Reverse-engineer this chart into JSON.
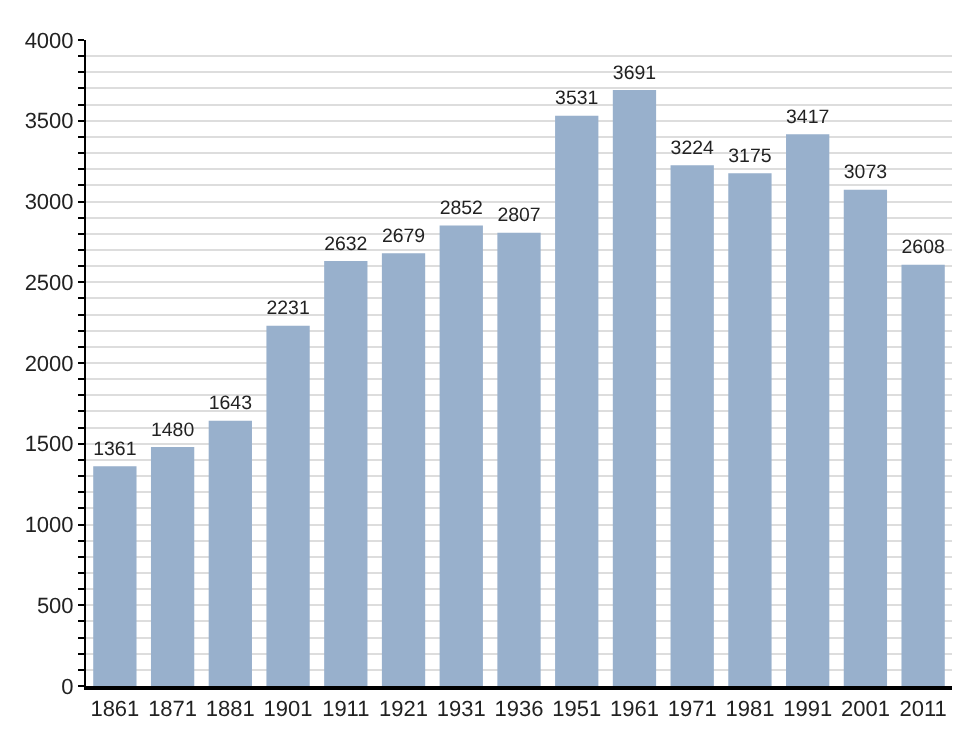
{
  "chart_data": {
    "type": "bar",
    "categories": [
      "1861",
      "1871",
      "1881",
      "1901",
      "1911",
      "1921",
      "1931",
      "1936",
      "1951",
      "1961",
      "1971",
      "1981",
      "1991",
      "2001",
      "2011"
    ],
    "values": [
      1361,
      1480,
      1643,
      2231,
      2632,
      2679,
      2852,
      2807,
      3531,
      3691,
      3224,
      3175,
      3417,
      3073,
      2608
    ],
    "color": "#98b0cc",
    "data_labels": true,
    "ylim": [
      0,
      4000
    ],
    "yticks": [
      0,
      {
        "value": 100,
        "label": null
      },
      {
        "value": 200,
        "label": null
      },
      {
        "value": 300,
        "label": null
      },
      {
        "value": 400,
        "label": null
      },
      500,
      {
        "value": 600,
        "label": null
      },
      {
        "value": 700,
        "label": null
      },
      {
        "value": 800,
        "label": null
      },
      {
        "value": 900,
        "label": null
      },
      1000,
      {
        "value": 1100,
        "label": null
      },
      {
        "value": 1200,
        "label": null
      },
      {
        "value": 1300,
        "label": null
      },
      {
        "value": 1400,
        "label": null
      },
      1500,
      {
        "value": 1600,
        "label": null
      },
      {
        "value": 1700,
        "label": null
      },
      {
        "value": 1800,
        "label": null
      },
      {
        "value": 1900,
        "label": null
      },
      2000,
      {
        "value": 2100,
        "label": null
      },
      {
        "value": 2200,
        "label": null
      },
      {
        "value": 2300,
        "label": null
      },
      {
        "value": 2400,
        "label": null
      },
      2500,
      {
        "value": 2600,
        "label": null
      },
      {
        "value": 2700,
        "label": null
      },
      {
        "value": 2800,
        "label": null
      },
      {
        "value": 2900,
        "label": null
      },
      3000,
      {
        "value": 3100,
        "label": null
      },
      {
        "value": 3200,
        "label": null
      },
      {
        "value": 3300,
        "label": null
      },
      {
        "value": 3400,
        "label": null
      },
      3500,
      {
        "value": 3600,
        "label": null
      },
      {
        "value": 3700,
        "label": null
      },
      {
        "value": 3800,
        "label": null
      },
      {
        "value": 3900,
        "label": null
      },
      4000
    ],
    "grid": "y"
  }
}
